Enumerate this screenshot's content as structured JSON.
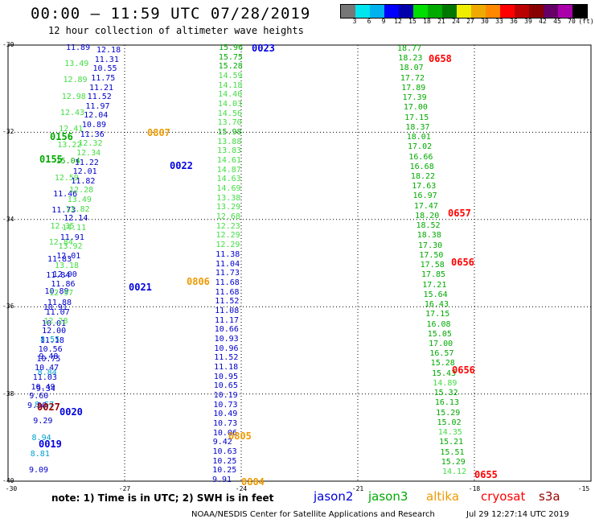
{
  "header": {
    "title": "00:00 – 11:59 UTC 07/28/2019",
    "subtitle": "12 hour collection of altimeter wave heights"
  },
  "colorbar": {
    "colors": [
      "#777777",
      "#00e5ee",
      "#00b2ee",
      "#0000ff",
      "#0000aa",
      "#00dd00",
      "#00aa00",
      "#007700",
      "#eeee00",
      "#eeaa00",
      "#ff8800",
      "#ff0000",
      "#bb0000",
      "#880000",
      "#660066",
      "#aa00aa",
      "#000000"
    ],
    "labels": [
      "3",
      "6",
      "9",
      "12",
      "15",
      "18",
      "21",
      "24",
      "27",
      "30",
      "33",
      "36",
      "39",
      "42",
      "45",
      "70",
      "(ft)"
    ]
  },
  "axes": {
    "y_labels": [
      "-30",
      "-32",
      "-34",
      "-36",
      "-38",
      "-40"
    ],
    "x_labels": [
      "-30",
      "-27",
      "-24",
      "-21",
      "-18",
      "-15"
    ]
  },
  "footer": {
    "note": "note: 1) Time is in UTC; 2) SWH is in feet",
    "credit": "NOAA/NESDIS Center for Satellite Applications and Research",
    "timestamp": "Jul 29 12:27:14 UTC 2019"
  },
  "legend": [
    {
      "name": "jason2",
      "color": "#0000dd"
    },
    {
      "name": "jason3",
      "color": "#00aa00"
    },
    {
      "name": "altika",
      "color": "#ee9900"
    },
    {
      "name": "cryosat",
      "color": "#ff0000"
    },
    {
      "name": "s3a",
      "color": "#990000"
    }
  ],
  "map_data": {
    "lon_range": [
      -30,
      -15
    ],
    "lat_range": [
      -40,
      -30
    ],
    "track_d_values": [
      "15.96",
      "15.75",
      "15.28",
      "14.59",
      "14.18",
      "14.40",
      "14.03",
      "14.56",
      "13.70",
      "15.98",
      "13.88",
      "13.83",
      "14.61",
      "14.87",
      "14.63",
      "14.69",
      "13.38",
      "13.29",
      "12.68",
      "12.23",
      "12.29",
      "12.29",
      "11.38",
      "11.04",
      "11.73",
      "11.68",
      "11.68",
      "11.52",
      "11.08",
      "11.17",
      "10.66",
      "10.93",
      "10.96",
      "11.52",
      "11.18",
      "10.95",
      "10.65",
      "10.19",
      "10.73",
      "10.49",
      "10.73",
      "10.06",
      "9.42",
      "10.63",
      "10.25",
      "10.25",
      "9.91"
    ],
    "track_c_values": [
      "12.18",
      "11.31",
      "10.55",
      "11.75",
      "11.21",
      "11.52",
      "11.97",
      "12.04",
      "10.89",
      "11.36",
      "12.32",
      "12.34",
      "11.22",
      "12.01",
      "11.82",
      "12.28",
      "13.49",
      "13.82",
      "12.14",
      "14.11",
      "11.91",
      "13.92",
      "12.01",
      "13.18",
      "12.00",
      "11.86",
      "12.97",
      "11.88",
      "11.07",
      "12.28",
      "12.00",
      "11.18",
      "10.56",
      "10.75",
      "10.47",
      "11.03",
      "10.49",
      "9.60",
      "9.90"
    ],
    "track_b_values": [
      "11.89",
      "13.49",
      "12.89",
      "12.98",
      "12.43",
      "12.41",
      "13.22",
      "15.04",
      "12.59",
      "11.46",
      "11.73",
      "12.35",
      "12.84",
      "11.83",
      "11.84",
      "10.89",
      "10.91",
      "10.01",
      "8.55",
      "9.48",
      "8.84",
      "9.34",
      "8.57",
      "9.29",
      "8.94",
      "8.81",
      "9.09"
    ],
    "track_a_values": [
      "18.77",
      "18.23",
      "18.07",
      "17.72",
      "17.89",
      "17.39",
      "17.00",
      "17.15",
      "18.37",
      "18.01",
      "17.02",
      "16.66",
      "16.68",
      "18.22",
      "17.63",
      "16.97",
      "17.47",
      "18.20",
      "18.52",
      "18.38",
      "17.30",
      "17.50",
      "17.58",
      "17.85",
      "17.21",
      "15.64",
      "16.43",
      "17.15",
      "16.08",
      "15.05",
      "17.00",
      "16.57",
      "15.28",
      "15.43",
      "14.89",
      "15.32",
      "16.13",
      "15.29",
      "15.02",
      "14.35",
      "15.21",
      "15.51",
      "15.29",
      "14.12"
    ],
    "pass_labels": [
      {
        "text": "0023",
        "sat": "jason2"
      },
      {
        "text": "0658",
        "sat": "cryosat"
      },
      {
        "text": "0807",
        "sat": "altika"
      },
      {
        "text": "0156",
        "sat": "jason3"
      },
      {
        "text": "0155",
        "sat": "jason3"
      },
      {
        "text": "0022",
        "sat": "jason2"
      },
      {
        "text": "0657",
        "sat": "cryosat"
      },
      {
        "text": "0656",
        "sat": "cryosat"
      },
      {
        "text": "0806",
        "sat": "altika"
      },
      {
        "text": "0021",
        "sat": "jason2"
      },
      {
        "text": "0656",
        "sat": "cryosat"
      },
      {
        "text": "0027",
        "sat": "s3a"
      },
      {
        "text": "0020",
        "sat": "jason2"
      },
      {
        "text": "0019",
        "sat": "jason2"
      },
      {
        "text": "0805",
        "sat": "altika"
      },
      {
        "text": "0655",
        "sat": "cryosat"
      },
      {
        "text": "0804",
        "sat": "altika"
      }
    ]
  }
}
